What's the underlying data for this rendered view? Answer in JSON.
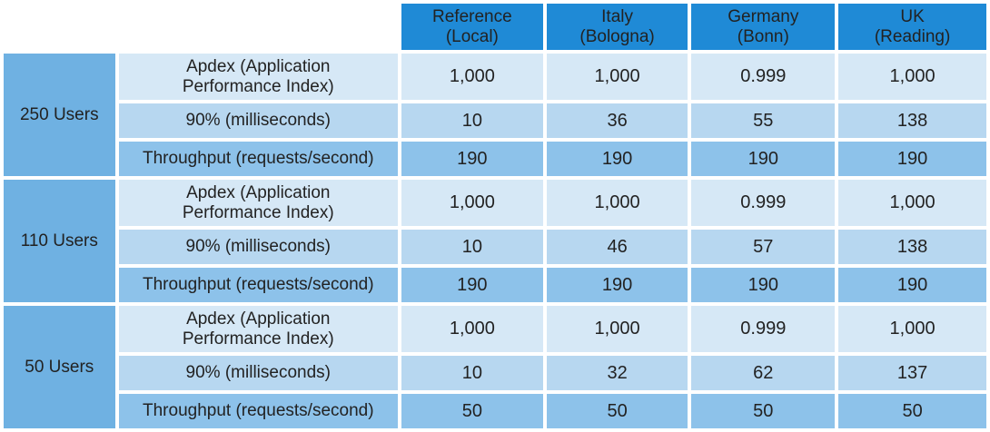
{
  "chart_data": {
    "type": "table",
    "columns": [
      {
        "line1": "Reference",
        "line2": "(Local)"
      },
      {
        "line1": "Italy",
        "line2": "(Bologna)"
      },
      {
        "line1": "Germany",
        "line2": "(Bonn)"
      },
      {
        "line1": "UK",
        "line2": "(Reading)"
      }
    ],
    "metrics": {
      "apdex_line1": "Apdex (Application",
      "apdex_line2": "Performance Index)",
      "p90": "90% (milliseconds)",
      "throughput": "Throughput (requests/second)"
    },
    "groups": [
      {
        "label": "250 Users",
        "apdex": [
          "1,000",
          "1,000",
          "0.999",
          "1,000"
        ],
        "p90": [
          "10",
          "36",
          "55",
          "138"
        ],
        "throughput": [
          "190",
          "190",
          "190",
          "190"
        ]
      },
      {
        "label": "110 Users",
        "apdex": [
          "1,000",
          "1,000",
          "0.999",
          "1,000"
        ],
        "p90": [
          "10",
          "46",
          "57",
          "138"
        ],
        "throughput": [
          "190",
          "190",
          "190",
          "190"
        ]
      },
      {
        "label": "50 Users",
        "apdex": [
          "1,000",
          "1,000",
          "0.999",
          "1,000"
        ],
        "p90": [
          "10",
          "32",
          "62",
          "137"
        ],
        "throughput": [
          "50",
          "50",
          "50",
          "50"
        ]
      }
    ]
  },
  "colors": {
    "header": "#1f8ad6",
    "group": "#6fb1e2",
    "apdex_row": "#d6e8f6",
    "p90_row": "#b7d7f0",
    "throughput_row": "#8dc2ea"
  }
}
